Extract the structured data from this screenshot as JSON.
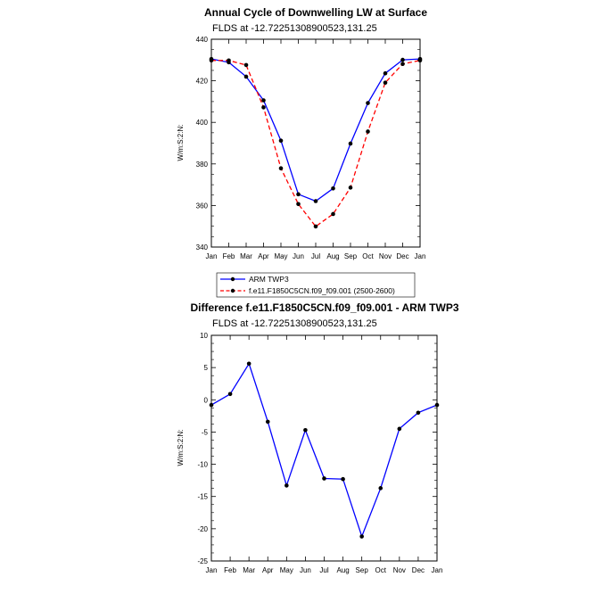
{
  "chart_data": [
    {
      "type": "line",
      "title": "Annual Cycle of Downwelling LW at Surface",
      "subtitle": "FLDS at -12.72251308900523,131.25",
      "ylabel": "W/m:S:2:N:",
      "xlabel": "",
      "categories": [
        "Jan",
        "Feb",
        "Mar",
        "Apr",
        "May",
        "Jun",
        "Jul",
        "Aug",
        "Sep",
        "Oct",
        "Nov",
        "Dec",
        "Jan"
      ],
      "ylim": [
        340,
        440
      ],
      "yticks": [
        340,
        360,
        380,
        400,
        420,
        440
      ],
      "legend_position": "below",
      "series": [
        {
          "name": "ARM TWP3",
          "color": "#0000ff",
          "dash": "solid",
          "values": [
            430.5,
            428.9,
            422,
            410.6,
            391.2,
            365.4,
            362.1,
            368.2,
            389.8,
            409.3,
            423.6,
            430.1,
            430.5
          ]
        },
        {
          "name": "f.e11.F1850C5CN.f09_f09.001 (2500-2600)",
          "color": "#ff0000",
          "dash": "dashed",
          "values": [
            429.8,
            429.8,
            427.6,
            407.2,
            377.9,
            360.7,
            349.9,
            355.9,
            368.6,
            395.6,
            419.1,
            428.1,
            429.8
          ]
        }
      ]
    },
    {
      "type": "line",
      "title": "Difference f.e11.F1850C5CN.f09_f09.001 - ARM TWP3",
      "subtitle": "FLDS at -12.72251308900523,131.25",
      "ylabel": "W/m:S:2:N:",
      "xlabel": "",
      "categories": [
        "Jan",
        "Feb",
        "Mar",
        "Apr",
        "May",
        "Jun",
        "Jul",
        "Aug",
        "Sep",
        "Oct",
        "Nov",
        "Dec",
        "Jan"
      ],
      "ylim": [
        -25,
        10
      ],
      "yticks": [
        -25,
        -20,
        -15,
        -10,
        -5,
        0,
        5,
        10
      ],
      "series": [
        {
          "color": "#0000ff",
          "dash": "solid",
          "values": [
            -0.8,
            0.9,
            5.6,
            -3.4,
            -13.3,
            -4.7,
            -12.2,
            -12.3,
            -21.2,
            -13.7,
            -4.5,
            -2.0,
            -0.8
          ]
        }
      ]
    }
  ]
}
